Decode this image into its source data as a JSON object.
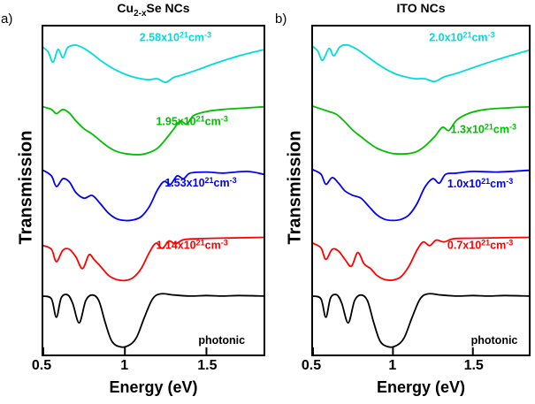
{
  "figure": {
    "background": "#ffffff",
    "panels": [
      {
        "panel_label": "a)",
        "title": {
          "prefix": "Cu",
          "sub": "2-x",
          "suffix": "Se NCs"
        }
      },
      {
        "panel_label": "b)",
        "title": {
          "prefix": "ITO NCs",
          "sub": "",
          "suffix": ""
        }
      }
    ]
  },
  "chart_data": [
    {
      "type": "line",
      "title": "Cu2-xSe NCs",
      "xlabel": "Energy (eV)",
      "ylabel": "Transmission",
      "x_range": [
        0.5,
        1.85
      ],
      "x_ticks": [
        "0.5",
        "1",
        "1.5"
      ],
      "x_tick_values": [
        0.5,
        1.0,
        1.5
      ],
      "grid": false,
      "legend_position": "inline-annotations",
      "y_axis_note": "arbitrary units, curves vertically offset",
      "series": [
        {
          "name": "cyan-2.58e21",
          "label": "2.58x10²¹cm⁻³",
          "label_parts": [
            {
              "t": "2.58x10"
            },
            {
              "t": "21",
              "sup": true
            },
            {
              "t": "cm"
            },
            {
              "t": "-3",
              "sup": true
            }
          ],
          "color": "#00dcdc",
          "band": [
            0.05,
            0.19
          ],
          "label_pos": [
            0.6,
            0.045
          ],
          "x": [
            0.5,
            0.53,
            0.56,
            0.59,
            0.62,
            0.65,
            0.7,
            0.75,
            0.8,
            0.85,
            0.9,
            0.95,
            1.0,
            1.05,
            1.1,
            1.15,
            1.2,
            1.25,
            1.3,
            1.35,
            1.45,
            1.55,
            1.7,
            1.85
          ],
          "t": [
            0.9,
            0.8,
            0.58,
            0.86,
            0.68,
            0.9,
            0.95,
            0.88,
            0.76,
            0.62,
            0.5,
            0.4,
            0.32,
            0.26,
            0.22,
            0.2,
            0.22,
            0.14,
            0.25,
            0.3,
            0.42,
            0.55,
            0.72,
            0.85
          ]
        },
        {
          "name": "green-1.95e21",
          "label": "1.95x10²¹cm⁻³",
          "label_parts": [
            {
              "t": "1.95x10"
            },
            {
              "t": "21",
              "sup": true
            },
            {
              "t": "cm"
            },
            {
              "t": "-3",
              "sup": true
            }
          ],
          "color": "#00bf00",
          "band": [
            0.24,
            0.4
          ],
          "label_pos": [
            0.675,
            0.3
          ],
          "x": [
            0.5,
            0.55,
            0.58,
            0.62,
            0.66,
            0.7,
            0.75,
            0.8,
            0.85,
            0.9,
            0.95,
            1.0,
            1.05,
            1.1,
            1.15,
            1.2,
            1.25,
            1.3,
            1.34,
            1.38,
            1.42,
            1.5,
            1.6,
            1.75,
            1.85
          ],
          "t": [
            0.97,
            0.92,
            0.84,
            0.92,
            0.85,
            0.7,
            0.55,
            0.45,
            0.32,
            0.2,
            0.12,
            0.08,
            0.06,
            0.06,
            0.1,
            0.18,
            0.35,
            0.55,
            0.7,
            0.64,
            0.8,
            0.88,
            0.92,
            0.95,
            0.97
          ]
        },
        {
          "name": "blue-1.53e21",
          "label": "1.53x10²¹cm⁻³",
          "label_parts": [
            {
              "t": "1.53x10"
            },
            {
              "t": "21",
              "sup": true
            },
            {
              "t": "cm"
            },
            {
              "t": "-3",
              "sup": true
            }
          ],
          "color": "#0000ff",
          "band": [
            0.43,
            0.6
          ],
          "label_pos": [
            0.715,
            0.488
          ],
          "x": [
            0.5,
            0.55,
            0.58,
            0.62,
            0.66,
            0.7,
            0.75,
            0.8,
            0.85,
            0.9,
            0.95,
            1.0,
            1.05,
            1.1,
            1.15,
            1.2,
            1.24,
            1.28,
            1.32,
            1.36,
            1.4,
            1.5,
            1.6,
            1.75,
            1.85
          ],
          "t": [
            0.95,
            0.85,
            0.66,
            0.8,
            0.74,
            0.55,
            0.45,
            0.5,
            0.35,
            0.18,
            0.08,
            0.05,
            0.06,
            0.12,
            0.3,
            0.6,
            0.75,
            0.7,
            0.85,
            0.8,
            0.9,
            0.92,
            0.9,
            0.93,
            0.88
          ]
        },
        {
          "name": "red-1.14e21",
          "label": "1.14x10²¹cm⁻³",
          "label_parts": [
            {
              "t": "1.14x10"
            },
            {
              "t": "21",
              "sup": true
            },
            {
              "t": "cm"
            },
            {
              "t": "-3",
              "sup": true
            }
          ],
          "color": "#ff0000",
          "band": [
            0.64,
            0.78
          ],
          "label_pos": [
            0.675,
            0.678
          ],
          "x": [
            0.5,
            0.55,
            0.58,
            0.62,
            0.66,
            0.7,
            0.74,
            0.78,
            0.81,
            0.85,
            0.9,
            0.95,
            1.0,
            1.05,
            1.1,
            1.15,
            1.19,
            1.23,
            1.27,
            1.31,
            1.36,
            1.45,
            1.55,
            1.7,
            1.85
          ],
          "t": [
            0.8,
            0.72,
            0.45,
            0.7,
            0.72,
            0.55,
            0.3,
            0.6,
            0.5,
            0.35,
            0.15,
            0.06,
            0.04,
            0.1,
            0.3,
            0.65,
            0.85,
            0.74,
            0.9,
            0.84,
            0.93,
            0.95,
            0.96,
            0.97,
            0.98
          ]
        },
        {
          "name": "black-photonic",
          "label": "photonic",
          "label_parts": [
            {
              "t": "photonic"
            }
          ],
          "color": "#000000",
          "band": [
            0.81,
            0.98
          ],
          "label_pos": [
            0.81,
            0.968
          ],
          "x": [
            0.5,
            0.55,
            0.58,
            0.61,
            0.65,
            0.68,
            0.72,
            0.76,
            0.8,
            0.84,
            0.88,
            0.92,
            0.97,
            1.02,
            1.07,
            1.12,
            1.17,
            1.22,
            1.3,
            1.4,
            1.5,
            1.6,
            1.7,
            1.85
          ],
          "t": [
            0.93,
            0.88,
            0.55,
            0.9,
            0.95,
            0.8,
            0.45,
            0.85,
            0.95,
            0.85,
            0.45,
            0.12,
            0.02,
            0.04,
            0.18,
            0.55,
            0.88,
            0.97,
            0.95,
            0.93,
            0.94,
            0.93,
            0.94,
            0.93
          ]
        }
      ]
    },
    {
      "type": "line",
      "title": "ITO NCs",
      "xlabel": "Energy (eV)",
      "ylabel": "Transmission",
      "x_range": [
        0.5,
        1.85
      ],
      "x_ticks": [
        "0.5",
        "1",
        "1.5"
      ],
      "x_tick_values": [
        0.5,
        1.0,
        1.5
      ],
      "grid": false,
      "legend_position": "inline-annotations",
      "y_axis_note": "arbitrary units, curves vertically offset",
      "series": [
        {
          "name": "cyan-2.0e21",
          "label": "2.0x10²¹cm⁻³",
          "label_parts": [
            {
              "t": "2.0x10"
            },
            {
              "t": "21",
              "sup": true
            },
            {
              "t": "cm"
            },
            {
              "t": "-3",
              "sup": true
            }
          ],
          "color": "#00dcdc",
          "band": [
            0.05,
            0.19
          ],
          "label_pos": [
            0.69,
            0.045
          ],
          "x": [
            0.5,
            0.53,
            0.56,
            0.6,
            0.63,
            0.67,
            0.72,
            0.78,
            0.84,
            0.9,
            0.96,
            1.02,
            1.08,
            1.14,
            1.2,
            1.26,
            1.32,
            1.4,
            1.5,
            1.62,
            1.75,
            1.85
          ],
          "t": [
            0.92,
            0.82,
            0.62,
            0.88,
            0.72,
            0.92,
            0.95,
            0.85,
            0.7,
            0.55,
            0.42,
            0.32,
            0.26,
            0.22,
            0.22,
            0.16,
            0.26,
            0.34,
            0.46,
            0.6,
            0.74,
            0.84
          ]
        },
        {
          "name": "green-1.3e21",
          "label": "1.3x10²¹cm⁻³",
          "label_parts": [
            {
              "t": "1.3x10"
            },
            {
              "t": "21",
              "sup": true
            },
            {
              "t": "cm"
            },
            {
              "t": "-3",
              "sup": true
            }
          ],
          "color": "#00bf00",
          "band": [
            0.24,
            0.4
          ],
          "label_pos": [
            0.79,
            0.325
          ],
          "x": [
            0.5,
            0.56,
            0.6,
            0.65,
            0.7,
            0.75,
            0.8,
            0.85,
            0.9,
            0.95,
            1.0,
            1.05,
            1.1,
            1.15,
            1.2,
            1.26,
            1.31,
            1.35,
            1.4,
            1.48,
            1.58,
            1.72,
            1.85
          ],
          "t": [
            0.98,
            0.92,
            0.88,
            0.82,
            0.68,
            0.52,
            0.4,
            0.28,
            0.18,
            0.12,
            0.08,
            0.07,
            0.08,
            0.12,
            0.22,
            0.4,
            0.58,
            0.52,
            0.72,
            0.85,
            0.92,
            0.95,
            0.97
          ]
        },
        {
          "name": "blue-1.0e21",
          "label": "1.0x10²¹cm⁻³",
          "label_parts": [
            {
              "t": "1.0x10"
            },
            {
              "t": "21",
              "sup": true
            },
            {
              "t": "cm"
            },
            {
              "t": "-3",
              "sup": true
            }
          ],
          "color": "#0000ff",
          "band": [
            0.43,
            0.6
          ],
          "label_pos": [
            0.775,
            0.49
          ],
          "x": [
            0.5,
            0.55,
            0.58,
            0.62,
            0.66,
            0.7,
            0.75,
            0.8,
            0.85,
            0.9,
            0.95,
            1.0,
            1.05,
            1.1,
            1.15,
            1.2,
            1.25,
            1.29,
            1.33,
            1.4,
            1.5,
            1.65,
            1.85
          ],
          "t": [
            0.96,
            0.88,
            0.7,
            0.82,
            0.72,
            0.58,
            0.5,
            0.45,
            0.3,
            0.15,
            0.07,
            0.05,
            0.07,
            0.15,
            0.35,
            0.65,
            0.8,
            0.72,
            0.88,
            0.9,
            0.93,
            0.92,
            0.95
          ]
        },
        {
          "name": "red-0.7e21",
          "label": "0.7x10²¹cm⁻³",
          "label_parts": [
            {
              "t": "0.7x10"
            },
            {
              "t": "21",
              "sup": true
            },
            {
              "t": "cm"
            },
            {
              "t": "-3",
              "sup": true
            }
          ],
          "color": "#ff0000",
          "band": [
            0.64,
            0.78
          ],
          "label_pos": [
            0.775,
            0.678
          ],
          "x": [
            0.5,
            0.55,
            0.58,
            0.62,
            0.66,
            0.7,
            0.74,
            0.78,
            0.82,
            0.86,
            0.9,
            0.95,
            1.0,
            1.05,
            1.1,
            1.15,
            1.19,
            1.23,
            1.27,
            1.32,
            1.38,
            1.5,
            1.65,
            1.85
          ],
          "t": [
            0.85,
            0.75,
            0.5,
            0.72,
            0.68,
            0.5,
            0.35,
            0.65,
            0.4,
            0.3,
            0.15,
            0.06,
            0.05,
            0.12,
            0.35,
            0.7,
            0.88,
            0.8,
            0.92,
            0.88,
            0.95,
            0.96,
            0.97,
            0.98
          ]
        },
        {
          "name": "black-photonic",
          "label": "photonic",
          "label_parts": [
            {
              "t": "photonic"
            }
          ],
          "color": "#000000",
          "band": [
            0.81,
            0.98
          ],
          "label_pos": [
            0.84,
            0.968
          ],
          "x": [
            0.5,
            0.55,
            0.58,
            0.61,
            0.65,
            0.68,
            0.72,
            0.76,
            0.8,
            0.84,
            0.88,
            0.92,
            0.97,
            1.02,
            1.07,
            1.12,
            1.17,
            1.22,
            1.3,
            1.4,
            1.5,
            1.6,
            1.7,
            1.85
          ],
          "t": [
            0.93,
            0.88,
            0.55,
            0.9,
            0.95,
            0.8,
            0.45,
            0.85,
            0.95,
            0.85,
            0.45,
            0.12,
            0.02,
            0.04,
            0.18,
            0.55,
            0.88,
            0.97,
            0.95,
            0.93,
            0.94,
            0.93,
            0.94,
            0.93
          ]
        }
      ]
    }
  ]
}
